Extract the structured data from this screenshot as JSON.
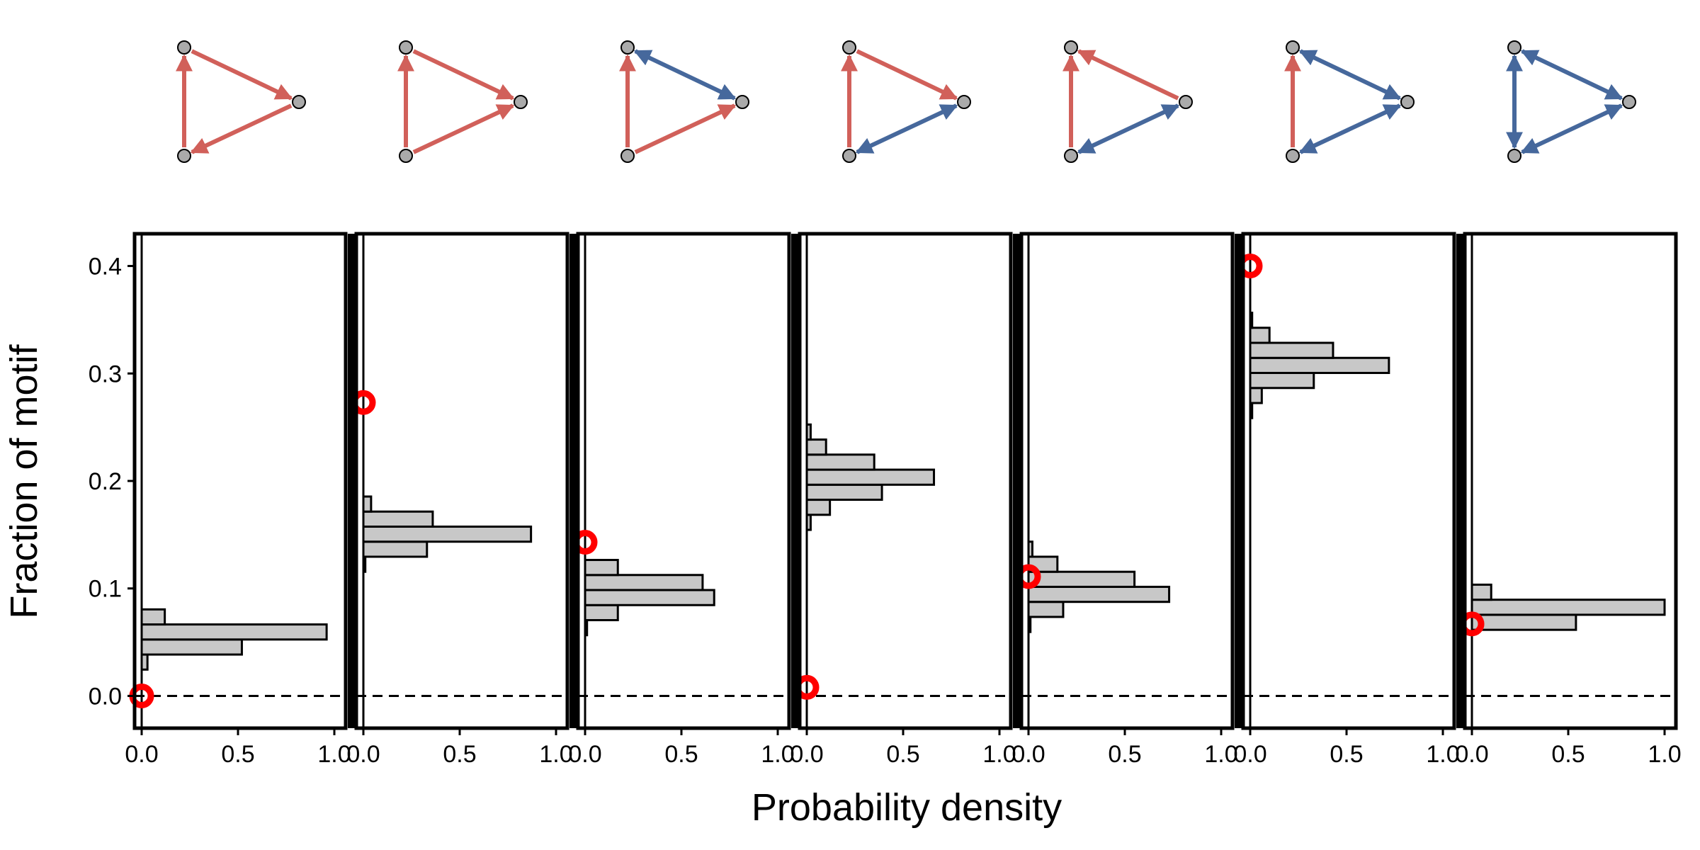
{
  "chart_data": {
    "type": "bar",
    "orientation": "horizontal",
    "xlabel": "Probability density",
    "ylabel": "Fraction of motif",
    "xlim": [
      0,
      1.0
    ],
    "ylim": [
      -0.03,
      0.43
    ],
    "x_ticks": [
      "0.0",
      "0.5",
      "1.0"
    ],
    "y_ticks": [
      "0.0",
      "0.1",
      "0.2",
      "0.3",
      "0.4"
    ],
    "bin_width": 0.014,
    "reference_line": {
      "y": 0.0,
      "style": "dashed"
    },
    "colors": {
      "positive_edge": "#d1605a",
      "negative_edge": "#46689c",
      "node_fill": "#aaaaaa",
      "bar_fill": "#c8c8c8",
      "marker": "#ff0000"
    },
    "panels": [
      {
        "motif": {
          "edges": [
            [
              "top",
              "right",
              "pos"
            ],
            [
              "bottom",
              "top",
              "pos"
            ],
            [
              "right",
              "bottom",
              "pos"
            ]
          ]
        },
        "bars": [
          {
            "y": 0.0315,
            "density": 0.03
          },
          {
            "y": 0.0455,
            "density": 0.52
          },
          {
            "y": 0.0595,
            "density": 0.96
          },
          {
            "y": 0.0735,
            "density": 0.12
          }
        ],
        "observed": 0.0
      },
      {
        "motif": {
          "edges": [
            [
              "top",
              "right",
              "pos"
            ],
            [
              "bottom",
              "top",
              "pos"
            ],
            [
              "bottom",
              "right",
              "pos"
            ]
          ]
        },
        "bars": [
          {
            "y": 0.1225,
            "density": 0.01
          },
          {
            "y": 0.1365,
            "density": 0.33
          },
          {
            "y": 0.1505,
            "density": 0.87
          },
          {
            "y": 0.1645,
            "density": 0.36
          },
          {
            "y": 0.1785,
            "density": 0.04
          }
        ],
        "observed": 0.273
      },
      {
        "motif": {
          "edges": [
            [
              "top",
              "right",
              "both-neg"
            ],
            [
              "bottom",
              "top",
              "pos"
            ],
            [
              "bottom",
              "right",
              "pos"
            ]
          ]
        },
        "bars": [
          {
            "y": 0.0635,
            "density": 0.01
          },
          {
            "y": 0.0775,
            "density": 0.17
          },
          {
            "y": 0.0915,
            "density": 0.67
          },
          {
            "y": 0.1055,
            "density": 0.61
          },
          {
            "y": 0.1195,
            "density": 0.17
          }
        ],
        "observed": 0.143
      },
      {
        "motif": {
          "edges": [
            [
              "top",
              "right",
              "pos"
            ],
            [
              "bottom",
              "top",
              "pos"
            ],
            [
              "bottom",
              "right",
              "both-neg"
            ]
          ]
        },
        "bars": [
          {
            "y": 0.1615,
            "density": 0.02
          },
          {
            "y": 0.1755,
            "density": 0.12
          },
          {
            "y": 0.1895,
            "density": 0.39
          },
          {
            "y": 0.2035,
            "density": 0.66
          },
          {
            "y": 0.2175,
            "density": 0.35
          },
          {
            "y": 0.2315,
            "density": 0.1
          },
          {
            "y": 0.2455,
            "density": 0.02
          }
        ],
        "observed": 0.008
      },
      {
        "motif": {
          "edges": [
            [
              "right",
              "top",
              "pos"
            ],
            [
              "bottom",
              "top",
              "pos"
            ],
            [
              "bottom",
              "right",
              "both-neg"
            ]
          ]
        },
        "bars": [
          {
            "y": 0.0665,
            "density": 0.01
          },
          {
            "y": 0.0805,
            "density": 0.18
          },
          {
            "y": 0.0945,
            "density": 0.73
          },
          {
            "y": 0.1085,
            "density": 0.55
          },
          {
            "y": 0.1225,
            "density": 0.15
          },
          {
            "y": 0.1365,
            "density": 0.02
          }
        ],
        "observed": 0.111
      },
      {
        "motif": {
          "edges": [
            [
              "top",
              "right",
              "both-neg"
            ],
            [
              "bottom",
              "top",
              "pos"
            ],
            [
              "bottom",
              "right",
              "both-neg"
            ]
          ]
        },
        "bars": [
          {
            "y": 0.2655,
            "density": 0.01
          },
          {
            "y": 0.2795,
            "density": 0.06
          },
          {
            "y": 0.2935,
            "density": 0.33
          },
          {
            "y": 0.3075,
            "density": 0.72
          },
          {
            "y": 0.3215,
            "density": 0.43
          },
          {
            "y": 0.3355,
            "density": 0.1
          },
          {
            "y": 0.3495,
            "density": 0.01
          }
        ],
        "observed": 0.4
      },
      {
        "motif": {
          "edges": [
            [
              "top",
              "right",
              "both-neg"
            ],
            [
              "bottom",
              "top",
              "both-neg"
            ],
            [
              "bottom",
              "right",
              "both-neg"
            ]
          ]
        },
        "bars": [
          {
            "y": 0.0685,
            "density": 0.54
          },
          {
            "y": 0.0825,
            "density": 1.0
          },
          {
            "y": 0.0965,
            "density": 0.1
          }
        ],
        "observed": 0.067
      }
    ]
  }
}
